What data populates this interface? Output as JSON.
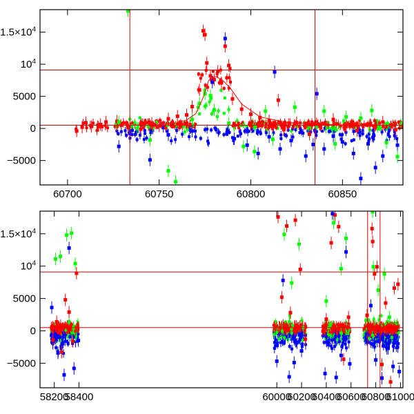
{
  "chart_data": [
    {
      "type": "scatter",
      "title": "",
      "xlabel": "",
      "ylabel": "",
      "xlim": [
        60685,
        60883
      ],
      "ylim": [
        -8800,
        18500
      ],
      "xticks": [
        {
          "value": 60700,
          "label": "60700"
        },
        {
          "value": 60750,
          "label": "60750"
        },
        {
          "value": 60800,
          "label": "60800"
        },
        {
          "value": 60850,
          "label": "60850"
        }
      ],
      "yticks": [
        {
          "value": -5000,
          "label": "−5000"
        },
        {
          "value": 0,
          "label": "0"
        },
        {
          "value": 5000,
          "label": "5000"
        },
        {
          "value": 10000,
          "label": "10",
          "sup": "4"
        },
        {
          "value": 15000,
          "label": "1.5×10",
          "sup": "4"
        }
      ],
      "hlines": [
        500,
        9100
      ],
      "vlines": [
        60734,
        60835
      ],
      "curve": {
        "x": [
          60750,
          60760,
          60765,
          60770,
          60774,
          60777,
          60781,
          60785,
          60789,
          60795,
          60805,
          60820,
          60850,
          60880
        ],
        "y": [
          600,
          900,
          1300,
          2300,
          4800,
          7500,
          8100,
          7400,
          6200,
          3800,
          1800,
          900,
          550,
          500
        ]
      },
      "series": [
        {
          "name": "red",
          "color": "#ff0000",
          "points": [
            [
              60705,
              -400
            ],
            [
              60708,
              200
            ],
            [
              60710,
              900
            ],
            [
              60713,
              300
            ],
            [
              60718,
              600
            ],
            [
              60721,
              1000
            ],
            [
              60727,
              1100
            ],
            [
              60733,
              150
            ],
            [
              60740,
              -100
            ],
            [
              60746,
              800
            ],
            [
              60750,
              400
            ],
            [
              60755,
              1500
            ],
            [
              60760,
              1900
            ],
            [
              60765,
              2100
            ],
            [
              60768,
              3400
            ],
            [
              60772,
              6000
            ],
            [
              60774,
              15200
            ],
            [
              60775,
              14600
            ],
            [
              60776,
              10200
            ],
            [
              60778,
              8200
            ],
            [
              60780,
              7600
            ],
            [
              60782,
              8900
            ],
            [
              60784,
              7100
            ],
            [
              60786,
              12800
            ],
            [
              60788,
              9800
            ],
            [
              60790,
              4600
            ],
            [
              60795,
              3000
            ],
            [
              60800,
              2200
            ],
            [
              60805,
              1700
            ],
            [
              60810,
              1200
            ],
            [
              60815,
              4400
            ],
            [
              60818,
              -200
            ],
            [
              60825,
              900
            ],
            [
              60832,
              -900
            ],
            [
              60838,
              500
            ],
            [
              60845,
              1400
            ],
            [
              60852,
              300
            ],
            [
              60858,
              -300
            ],
            [
              60865,
              600
            ],
            [
              60872,
              1000
            ],
            [
              60879,
              -200
            ]
          ]
        },
        {
          "name": "blue",
          "color": "#0000ff",
          "points": [
            [
              60728,
              -2800
            ],
            [
              60734,
              -800
            ],
            [
              60745,
              -4900
            ],
            [
              60755,
              -1000
            ],
            [
              60768,
              -400
            ],
            [
              60779,
              7200
            ],
            [
              60786,
              14000
            ],
            [
              60791,
              -1600
            ],
            [
              60798,
              -2600
            ],
            [
              60804,
              -3900
            ],
            [
              60810,
              -1300
            ],
            [
              60813,
              8800
            ],
            [
              60816,
              -3200
            ],
            [
              60822,
              -1900
            ],
            [
              60830,
              -4300
            ],
            [
              60834,
              -2500
            ],
            [
              60836,
              5400
            ],
            [
              60840,
              -3200
            ],
            [
              60845,
              -1200
            ],
            [
              60850,
              -2100
            ],
            [
              60856,
              -3900
            ],
            [
              60860,
              -7800
            ],
            [
              60864,
              -2400
            ],
            [
              60868,
              -6100
            ],
            [
              60872,
              -4300
            ],
            [
              60880,
              -2600
            ]
          ]
        },
        {
          "name": "green",
          "color": "#00ff00",
          "points": [
            [
              60728,
              1000
            ],
            [
              60733,
              18300
            ],
            [
              60738,
              0
            ],
            [
              60745,
              -1800
            ],
            [
              60755,
              -6600
            ],
            [
              60759,
              -8300
            ],
            [
              60768,
              1400
            ],
            [
              60772,
              3900
            ],
            [
              60775,
              5400
            ],
            [
              60778,
              5100
            ],
            [
              60780,
              2900
            ],
            [
              60788,
              800
            ],
            [
              60796,
              -2800
            ],
            [
              60802,
              -3600
            ],
            [
              60808,
              2700
            ],
            [
              60812,
              -1700
            ],
            [
              60824,
              3300
            ],
            [
              60840,
              2700
            ],
            [
              60846,
              -2400
            ],
            [
              60852,
              1800
            ],
            [
              60860,
              1600
            ],
            [
              60866,
              2800
            ],
            [
              60874,
              -2200
            ],
            [
              60880,
              -4400
            ]
          ]
        }
      ]
    },
    {
      "type": "scatter",
      "title": "",
      "xlabel": "",
      "ylabel": "",
      "xlim": [
        58085,
        61020
      ],
      "ylim": [
        -8800,
        18500
      ],
      "xticks": [
        {
          "value": 58200,
          "label": "58200"
        },
        {
          "value": 58400,
          "label": "58400"
        },
        {
          "value": 60000,
          "label": "60000"
        },
        {
          "value": 60200,
          "label": "60200"
        },
        {
          "value": 60400,
          "label": "60400"
        },
        {
          "value": 60600,
          "label": "60600"
        },
        {
          "value": 60800,
          "label": "60800"
        },
        {
          "value": 61000,
          "label": "61000"
        }
      ],
      "yticks": [
        {
          "value": -5000,
          "label": "−5000"
        },
        {
          "value": 0,
          "label": "0"
        },
        {
          "value": 5000,
          "label": "5000"
        },
        {
          "value": 10000,
          "label": "10",
          "sup": "4"
        },
        {
          "value": 15000,
          "label": "1.5×10",
          "sup": "4"
        }
      ],
      "hlines": [
        500,
        9100
      ],
      "vlines": [
        60734,
        60835
      ],
      "clusters": [
        {
          "x0": 58175,
          "x1": 58395
        },
        {
          "x0": 59975,
          "x1": 60235
        },
        {
          "x0": 60370,
          "x1": 60590
        },
        {
          "x0": 60705,
          "x1": 60880
        },
        {
          "x0": 60880,
          "x1": 60985
        }
      ],
      "series": [
        {
          "name": "red",
          "color": "#ff0000",
          "points": [
            [
              58190,
              -1400
            ],
            [
              58220,
              1400
            ],
            [
              58260,
              -3300
            ],
            [
              58290,
              4800
            ],
            [
              58320,
              2900
            ],
            [
              58350,
              -1600
            ],
            [
              58380,
              8900
            ],
            [
              60010,
              17600
            ],
            [
              60040,
              5200
            ],
            [
              60080,
              16200
            ],
            [
              60110,
              2800
            ],
            [
              60150,
              17100
            ],
            [
              60190,
              9500
            ],
            [
              60230,
              -1300
            ],
            [
              60400,
              1800
            ],
            [
              60440,
              13600
            ],
            [
              60470,
              17900
            ],
            [
              60500,
              16100
            ],
            [
              60540,
              -4400
            ],
            [
              60580,
              2100
            ],
            [
              60730,
              2400
            ],
            [
              60770,
              15800
            ],
            [
              60775,
              13800
            ],
            [
              60790,
              8800
            ],
            [
              60810,
              9900
            ],
            [
              60850,
              -5200
            ],
            [
              60880,
              4300
            ],
            [
              60920,
              -7900
            ],
            [
              60950,
              6600
            ],
            [
              60980,
              7200
            ]
          ]
        },
        {
          "name": "blue",
          "color": "#0000ff",
          "points": [
            [
              58180,
              3600
            ],
            [
              58230,
              -3400
            ],
            [
              58280,
              -6800
            ],
            [
              58320,
              12800
            ],
            [
              58360,
              -5800
            ],
            [
              58395,
              -1500
            ],
            [
              60000,
              -4700
            ],
            [
              60050,
              7800
            ],
            [
              60100,
              -7100
            ],
            [
              60140,
              -4900
            ],
            [
              60200,
              -3100
            ],
            [
              60390,
              -6600
            ],
            [
              60450,
              18100
            ],
            [
              60480,
              -7200
            ],
            [
              60520,
              -3800
            ],
            [
              60560,
              12200
            ],
            [
              60590,
              -5100
            ],
            [
              60760,
              3900
            ],
            [
              60800,
              -4500
            ],
            [
              60850,
              -7300
            ],
            [
              60900,
              -2700
            ],
            [
              60940,
              -5500
            ],
            [
              60990,
              -6300
            ]
          ]
        },
        {
          "name": "green",
          "color": "#00ff00",
          "points": [
            [
              58210,
              11100
            ],
            [
              58250,
              11500
            ],
            [
              58300,
              14800
            ],
            [
              58340,
              15100
            ],
            [
              58370,
              10400
            ],
            [
              60060,
              14900
            ],
            [
              60120,
              7400
            ],
            [
              60180,
              13400
            ],
            [
              60400,
              4600
            ],
            [
              60460,
              16700
            ],
            [
              60520,
              9600
            ],
            [
              60560,
              14300
            ],
            [
              60775,
              18400
            ],
            [
              60780,
              9900
            ],
            [
              60820,
              6300
            ],
            [
              60870,
              8800
            ],
            [
              60910,
              2100
            ]
          ]
        }
      ]
    }
  ]
}
